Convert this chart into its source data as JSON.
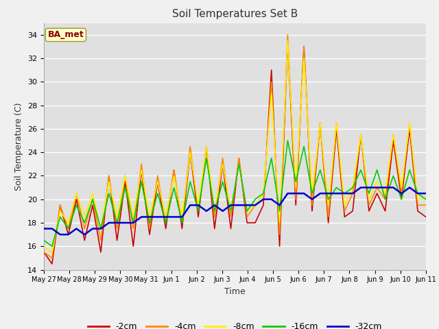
{
  "title": "Soil Temperatures Set B",
  "xlabel": "Time",
  "ylabel": "Soil Temperature (C)",
  "ylim": [
    14,
    35
  ],
  "yticks": [
    14,
    16,
    18,
    20,
    22,
    24,
    26,
    28,
    30,
    32,
    34
  ],
  "annotation": "BA_met",
  "fig_color": "#f0f0f0",
  "bg_color": "#e0e0e0",
  "x_labels": [
    "May 27",
    "May 28",
    "May 29",
    "May 30",
    "May 31",
    "Jun 1",
    "Jun 2",
    "Jun 3",
    "Jun 4",
    "Jun 5",
    "Jun 6",
    "Jun 7",
    "Jun 8",
    "Jun 9",
    "Jun 10",
    "Jun 11"
  ],
  "series": {
    "-2cm": {
      "color": "#cc0000",
      "lw": 1.2
    },
    "-4cm": {
      "color": "#ff8800",
      "lw": 1.2
    },
    "-8cm": {
      "color": "#ffee00",
      "lw": 1.2
    },
    "-16cm": {
      "color": "#00cc00",
      "lw": 1.2
    },
    "-32cm": {
      "color": "#0000cc",
      "lw": 1.8
    }
  },
  "data_2cm": [
    15.5,
    14.5,
    19.5,
    17.0,
    20.0,
    16.5,
    19.5,
    15.5,
    22.0,
    16.5,
    21.5,
    16.0,
    22.5,
    17.0,
    21.5,
    17.5,
    22.5,
    17.5,
    24.0,
    18.5,
    24.5,
    17.5,
    23.0,
    17.5,
    23.5,
    18.0,
    18.0,
    19.5,
    31.0,
    16.0,
    33.5,
    19.5,
    33.0,
    19.0,
    26.5,
    18.0,
    26.0,
    18.5,
    19.0,
    25.5,
    19.0,
    20.5,
    19.0,
    25.0,
    20.0,
    26.0,
    19.0,
    18.5
  ],
  "data_4cm": [
    15.5,
    15.0,
    19.5,
    17.5,
    20.5,
    17.5,
    20.0,
    16.5,
    22.0,
    17.5,
    22.0,
    17.5,
    23.0,
    17.5,
    22.0,
    18.0,
    22.5,
    18.0,
    24.5,
    19.0,
    24.5,
    18.5,
    23.5,
    18.5,
    23.5,
    18.5,
    19.5,
    20.0,
    30.0,
    17.0,
    34.0,
    20.0,
    33.0,
    19.5,
    26.5,
    18.5,
    26.5,
    19.0,
    20.5,
    25.5,
    19.5,
    21.0,
    20.0,
    25.5,
    20.5,
    26.5,
    19.5,
    19.5
  ],
  "data_8cm": [
    16.0,
    15.5,
    19.0,
    18.0,
    20.5,
    18.5,
    20.5,
    17.5,
    21.5,
    18.5,
    22.0,
    18.5,
    22.5,
    18.5,
    21.5,
    18.5,
    22.0,
    18.5,
    24.0,
    19.5,
    24.5,
    19.0,
    23.0,
    19.0,
    23.0,
    19.0,
    19.5,
    20.5,
    29.0,
    18.0,
    33.5,
    21.0,
    32.0,
    20.5,
    26.5,
    19.5,
    26.5,
    19.5,
    21.0,
    25.5,
    20.0,
    21.5,
    20.5,
    25.5,
    21.0,
    26.5,
    20.0,
    20.0
  ],
  "data_16cm": [
    16.5,
    16.0,
    18.5,
    17.5,
    19.5,
    18.0,
    20.0,
    17.5,
    20.5,
    18.0,
    21.0,
    18.0,
    21.5,
    18.0,
    20.5,
    18.0,
    21.0,
    18.0,
    21.5,
    19.0,
    23.5,
    19.0,
    21.5,
    19.0,
    23.0,
    19.0,
    20.0,
    20.5,
    23.5,
    19.0,
    25.0,
    21.5,
    24.5,
    20.5,
    22.5,
    20.0,
    21.0,
    20.5,
    21.0,
    22.5,
    20.5,
    22.5,
    20.0,
    22.0,
    20.0,
    22.5,
    20.5,
    20.0
  ],
  "data_32cm": [
    17.5,
    17.5,
    17.0,
    17.0,
    17.5,
    17.0,
    17.5,
    17.5,
    18.0,
    18.0,
    18.0,
    18.0,
    18.5,
    18.5,
    18.5,
    18.5,
    18.5,
    18.5,
    19.5,
    19.5,
    19.0,
    19.5,
    19.0,
    19.5,
    19.5,
    19.5,
    19.5,
    20.0,
    20.0,
    19.5,
    20.5,
    20.5,
    20.5,
    20.0,
    20.5,
    20.5,
    20.5,
    20.5,
    20.5,
    21.0,
    21.0,
    21.0,
    21.0,
    21.0,
    20.5,
    21.0,
    20.5,
    20.5
  ]
}
